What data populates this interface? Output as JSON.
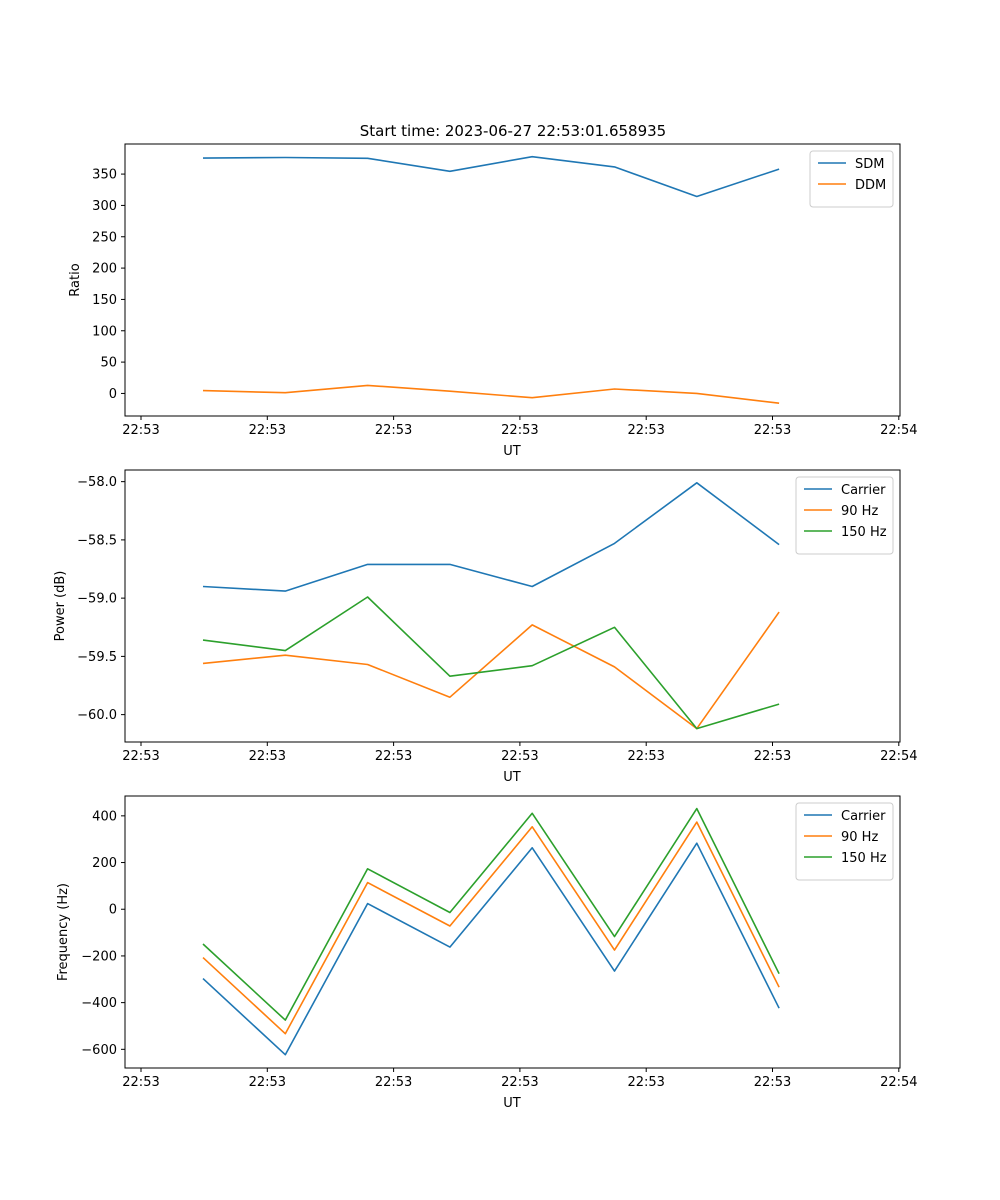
{
  "figure": {
    "title": "Start time: 2023-06-27 22:53:01.658935"
  },
  "chart_data": [
    {
      "type": "line",
      "title": "Start time: 2023-06-27 22:53:01.658935",
      "xlabel": "UT",
      "ylabel": "Ratio",
      "x_tick_labels": [
        "22:53",
        "22:53",
        "22:53",
        "22:53",
        "22:53",
        "22:53",
        "22:54"
      ],
      "y_ticks": [
        0,
        50,
        100,
        150,
        200,
        250,
        300,
        350
      ],
      "ylim": [
        -36,
        398
      ],
      "grid": false,
      "legend_position": "top-right",
      "series": [
        {
          "name": "SDM",
          "color": "#1f77b4",
          "values": [
            375.5,
            376.5,
            375.2,
            354.5,
            377.8,
            361.5,
            314.2,
            358.0
          ]
        },
        {
          "name": "DDM",
          "color": "#ff7f0e",
          "values": [
            4.5,
            1.2,
            12.8,
            3.6,
            -6.8,
            7.1,
            0.0,
            -15.6
          ]
        }
      ]
    },
    {
      "type": "line",
      "title": "",
      "xlabel": "UT",
      "ylabel": "Power (dB)",
      "x_tick_labels": [
        "22:53",
        "22:53",
        "22:53",
        "22:53",
        "22:53",
        "22:53",
        "22:54"
      ],
      "y_ticks": [
        -60.0,
        -59.5,
        -59.0,
        -58.5,
        -58.0
      ],
      "y_tick_labels": [
        "−60.0",
        "−59.5",
        "−59.0",
        "−58.5",
        "−58.0"
      ],
      "ylim": [
        -60.235,
        -57.9
      ],
      "grid": false,
      "legend_position": "top-right",
      "series": [
        {
          "name": "Carrier",
          "color": "#1f77b4",
          "values": [
            -58.9,
            -58.94,
            -58.71,
            -58.71,
            -58.9,
            -58.53,
            -58.01,
            -58.54
          ]
        },
        {
          "name": "90 Hz",
          "color": "#ff7f0e",
          "values": [
            -59.56,
            -59.49,
            -59.57,
            -59.85,
            -59.23,
            -59.59,
            -60.12,
            -59.12
          ]
        },
        {
          "name": "150 Hz",
          "color": "#2ca02c",
          "values": [
            -59.36,
            -59.45,
            -58.99,
            -59.67,
            -59.58,
            -59.25,
            -60.12,
            -59.91
          ]
        }
      ]
    },
    {
      "type": "line",
      "title": "",
      "xlabel": "UT",
      "ylabel": "Frequency (Hz)",
      "x_tick_labels": [
        "22:53",
        "22:53",
        "22:53",
        "22:53",
        "22:53",
        "22:53",
        "22:54"
      ],
      "y_ticks": [
        -600,
        -400,
        -200,
        0,
        200,
        400
      ],
      "y_tick_labels": [
        "−600",
        "−400",
        "−200",
        "0",
        "200",
        "400"
      ],
      "ylim": [
        -680,
        485
      ],
      "grid": false,
      "legend_position": "top-right",
      "series": [
        {
          "name": "Carrier",
          "color": "#1f77b4",
          "values": [
            -297,
            -623,
            24,
            -162,
            263,
            -265,
            283,
            -424
          ]
        },
        {
          "name": "90 Hz",
          "color": "#ff7f0e",
          "values": [
            -207,
            -533,
            114,
            -72,
            353,
            -175,
            373,
            -334
          ]
        },
        {
          "name": "150 Hz",
          "color": "#2ca02c",
          "values": [
            -149,
            -475,
            173,
            -14,
            411,
            -117,
            431,
            -276
          ]
        }
      ]
    }
  ]
}
